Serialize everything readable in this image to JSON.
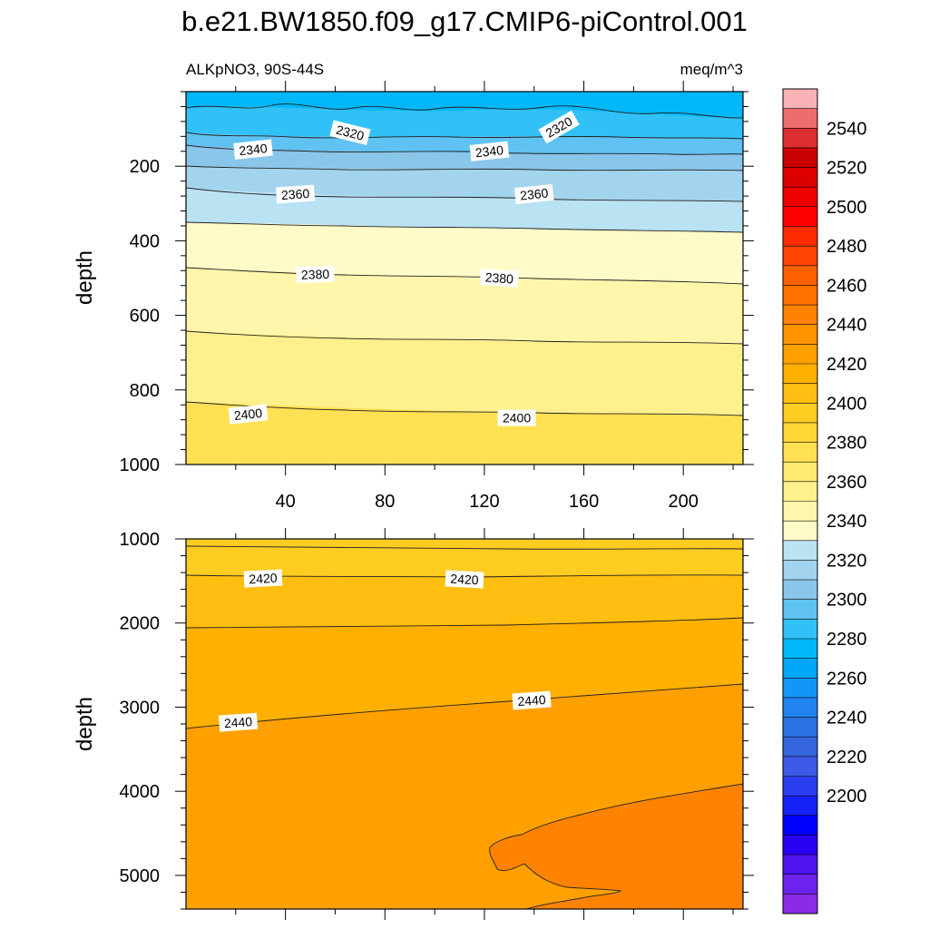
{
  "figure": {
    "title": "b.e21.BW1850.f09_g17.CMIP6-piControl.001",
    "left_subtitle": "ALKpNO3, 90S-44S",
    "right_subtitle": "meq/m^3"
  },
  "chart_data": [
    {
      "type": "heatmap",
      "panel": "upper",
      "xlabel": "",
      "ylabel": "depth",
      "xlim": [
        0,
        224
      ],
      "ylim": [
        1000,
        0
      ],
      "x_ticks": [
        40,
        80,
        120,
        160,
        200
      ],
      "x_tick_labels": [
        "40",
        "80",
        "120",
        "160",
        "200"
      ],
      "y_ticks": [
        200,
        400,
        600,
        800,
        1000
      ],
      "y_tick_labels": [
        "200",
        "400",
        "600",
        "800",
        "1000"
      ],
      "contours": [
        {
          "level": 2320,
          "depth_left": 60,
          "depth_right": 75
        },
        {
          "level": 2330,
          "depth_left": 110,
          "depth_right": 130
        },
        {
          "level": 2340,
          "depth_left": 140,
          "depth_right": 170
        },
        {
          "level": 2350,
          "depth_left": 200,
          "depth_right": 215
        },
        {
          "level": 2360,
          "depth_left": 260,
          "depth_right": 290
        },
        {
          "level": 2370,
          "depth_left": 350,
          "depth_right": 380
        },
        {
          "level": 2380,
          "depth_left": 470,
          "depth_right": 510
        },
        {
          "level": 2390,
          "depth_left": 640,
          "depth_right": 680
        },
        {
          "level": 2400,
          "depth_left": 835,
          "depth_right": 870
        }
      ],
      "contour_labels": [
        {
          "text": "2320",
          "x": 66,
          "depth": 110
        },
        {
          "text": "2320",
          "x": 150,
          "depth": 95
        },
        {
          "text": "2340",
          "x": 27,
          "depth": 155
        },
        {
          "text": "2340",
          "x": 122,
          "depth": 160
        },
        {
          "text": "2360",
          "x": 44,
          "depth": 275
        },
        {
          "text": "2360",
          "x": 140,
          "depth": 275
        },
        {
          "text": "2380",
          "x": 52,
          "depth": 490
        },
        {
          "text": "2380",
          "x": 126,
          "depth": 500
        },
        {
          "text": "2400",
          "x": 25,
          "depth": 865
        },
        {
          "text": "2400",
          "x": 133,
          "depth": 875
        }
      ]
    },
    {
      "type": "heatmap",
      "panel": "lower",
      "xlabel": "",
      "ylabel": "depth",
      "xlim": [
        0,
        224
      ],
      "ylim": [
        5400,
        1000
      ],
      "x_ticks": [
        40,
        80,
        120,
        160,
        200
      ],
      "y_ticks": [
        1000,
        2000,
        3000,
        4000,
        5000
      ],
      "y_tick_labels": [
        "1000",
        "2000",
        "3000",
        "4000",
        "5000"
      ],
      "contours": [
        {
          "level": 2410,
          "depth_left": 1080,
          "depth_right": 1110
        },
        {
          "level": 2420,
          "depth_left": 1440,
          "depth_right": 1470
        },
        {
          "level": 2430,
          "depth_left": 2050,
          "depth_right": 1930
        },
        {
          "level": 2440,
          "depth_left": 3230,
          "depth_right": 2700
        }
      ],
      "contour_labels": [
        {
          "text": "2420",
          "x": 31,
          "depth": 1470
        },
        {
          "text": "2420",
          "x": 112,
          "depth": 1480
        },
        {
          "text": "2440",
          "x": 21,
          "depth": 3180
        },
        {
          "text": "2440",
          "x": 139,
          "depth": 2920
        }
      ]
    }
  ],
  "colorbar": {
    "labels": [
      "2540",
      "2520",
      "2500",
      "2480",
      "2460",
      "2440",
      "2420",
      "2400",
      "2380",
      "2360",
      "2340",
      "2320",
      "2300",
      "2280",
      "2260",
      "2240",
      "2220",
      "2200"
    ],
    "colors": [
      "#f9b2b5",
      "#ee6b6e",
      "#dc2e2e",
      "#c80000",
      "#dd0000",
      "#ef0000",
      "#ff0000",
      "#ff2b00",
      "#ff4300",
      "#ff6100",
      "#ff7200",
      "#ff8300",
      "#ff9400",
      "#ffa000",
      "#ffb000",
      "#ffbe10",
      "#ffcc22",
      "#ffd835",
      "#ffe153",
      "#ffe970",
      "#fff08e",
      "#fff6ac",
      "#fffbc8",
      "#b9e2f3",
      "#a2d4ee",
      "#8ac6ea",
      "#5fc2f2",
      "#31c1f6",
      "#00b8f9",
      "#00a6f8",
      "#1296f8",
      "#2183f0",
      "#2b72e2",
      "#3566de",
      "#3d5ae6",
      "#2a3ef0",
      "#1522f8",
      "#0000ff",
      "#2a00f2",
      "#4f14ee",
      "#6e22ee",
      "#8a2be8"
    ]
  }
}
